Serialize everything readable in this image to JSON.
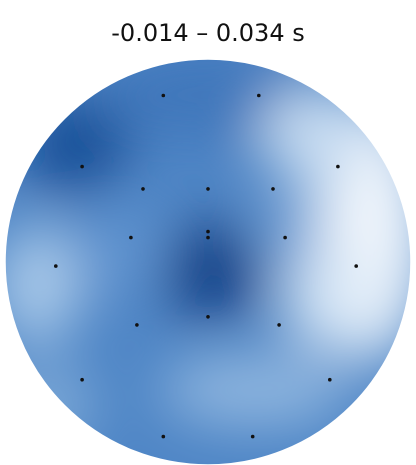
{
  "chart_data": {
    "type": "heatmap",
    "title": "-0.014 – 0.034 s",
    "colormap": "Blues",
    "colors": {
      "darkest": "#0b3f86",
      "mid": "#3f79bd",
      "light": "#a7c7e8",
      "lightest": "#eef4fb"
    },
    "sensors": [
      [
        -0.22,
        0.82
      ],
      [
        0.25,
        0.82
      ],
      [
        -0.62,
        0.47
      ],
      [
        -0.32,
        0.36
      ],
      [
        0.0,
        0.36
      ],
      [
        0.32,
        0.36
      ],
      [
        0.64,
        0.47
      ],
      [
        -0.75,
        -0.02
      ],
      [
        -0.38,
        0.12
      ],
      [
        0.0,
        0.15
      ],
      [
        0.0,
        0.12
      ],
      [
        0.38,
        0.12
      ],
      [
        0.73,
        -0.02
      ],
      [
        -0.35,
        -0.31
      ],
      [
        0.0,
        -0.27
      ],
      [
        0.35,
        -0.31
      ],
      [
        -0.62,
        -0.58
      ],
      [
        0.6,
        -0.58
      ],
      [
        -0.22,
        -0.86
      ],
      [
        0.22,
        -0.86
      ]
    ]
  }
}
